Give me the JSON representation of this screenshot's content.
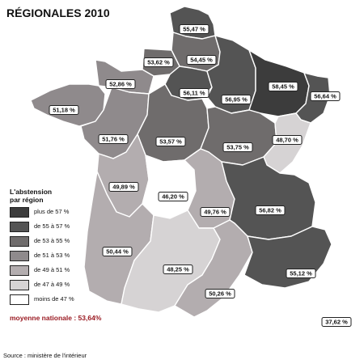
{
  "title": "RÉGIONALES 2010",
  "legend": {
    "title_line1": "L'abstension",
    "title_line2": "par région",
    "items": [
      {
        "label": "plus de 57 %",
        "color": "#3c3c3c"
      },
      {
        "label": "de 55 à 57 %",
        "color": "#545454"
      },
      {
        "label": "de 53 à 55 %",
        "color": "#6f6c6c"
      },
      {
        "label": "de 51 à 53 %",
        "color": "#8f8a8c"
      },
      {
        "label": "de 49 à 51 %",
        "color": "#b3adaf"
      },
      {
        "label": "de 47 à 49 %",
        "color": "#d6d3d4"
      },
      {
        "label": "moins de 47 %",
        "color": "#ffffff"
      }
    ]
  },
  "national_average": "moyenne nationale : 53,64%",
  "source": "Source : ministère de l'intérieur",
  "regions": [
    {
      "id": "nord-pas-de-calais",
      "value": "55,47 %",
      "color": "#545454"
    },
    {
      "id": "picardie",
      "value": "54,45 %",
      "color": "#6f6c6c"
    },
    {
      "id": "haute-normandie",
      "value": "53,62 %",
      "color": "#6f6c6c"
    },
    {
      "id": "basse-normandie",
      "value": "52,86 %",
      "color": "#8f8a8c"
    },
    {
      "id": "bretagne",
      "value": "51,18 %",
      "color": "#8f8a8c"
    },
    {
      "id": "ile-de-france",
      "value": "56,11 %",
      "color": "#545454"
    },
    {
      "id": "champagne-ardenne",
      "value": "56,95 %",
      "color": "#545454"
    },
    {
      "id": "lorraine",
      "value": "58,45 %",
      "color": "#3c3c3c"
    },
    {
      "id": "alsace",
      "value": "56,64 %",
      "color": "#545454"
    },
    {
      "id": "pays-de-la-loire",
      "value": "51,76 %",
      "color": "#8f8a8c"
    },
    {
      "id": "centre",
      "value": "53,57 %",
      "color": "#6f6c6c"
    },
    {
      "id": "bourgogne",
      "value": "53,75 %",
      "color": "#6f6c6c"
    },
    {
      "id": "franche-comte",
      "value": "48,70 %",
      "color": "#d6d3d4"
    },
    {
      "id": "poitou-charentes",
      "value": "49,89 %",
      "color": "#b3adaf"
    },
    {
      "id": "limousin",
      "value": "46,20 %",
      "color": "#ffffff"
    },
    {
      "id": "auvergne",
      "value": "49,76 %",
      "color": "#b3adaf"
    },
    {
      "id": "rhone-alpes",
      "value": "56,82 %",
      "color": "#545454"
    },
    {
      "id": "aquitaine",
      "value": "50,44 %",
      "color": "#b3adaf"
    },
    {
      "id": "midi-pyrenees",
      "value": "48,25 %",
      "color": "#d6d3d4"
    },
    {
      "id": "languedoc-roussillon",
      "value": "50,26 %",
      "color": "#b3adaf"
    },
    {
      "id": "paca",
      "value": "55,12 %",
      "color": "#545454"
    },
    {
      "id": "corse",
      "value": "37,62 %",
      "color": "#ffffff"
    }
  ]
}
